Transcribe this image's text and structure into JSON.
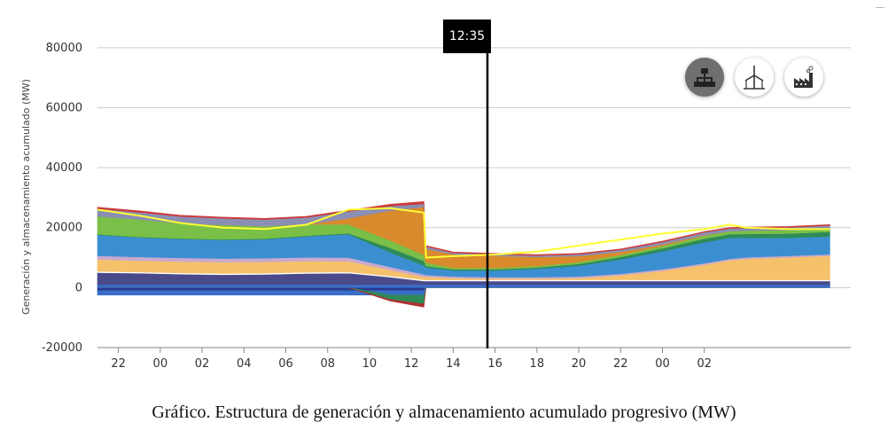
{
  "chart_data": {
    "type": "area",
    "ylabel": "Generación y almacenamiento acumulado (MW)",
    "xlabel": "",
    "ylim": [
      -20000,
      90000
    ],
    "y_ticks": [
      "80000",
      "60000",
      "40000",
      "20000",
      "0",
      "-20000"
    ],
    "x_ticks": [
      "22",
      "00",
      "02",
      "04",
      "06",
      "08",
      "10",
      "12",
      "14",
      "16",
      "18",
      "20",
      "22",
      "00",
      "02"
    ],
    "cursor_time": "12:35",
    "x_hours": [
      0,
      2,
      4,
      6,
      8,
      10,
      12,
      14,
      15.6,
      15.7,
      17,
      19,
      21,
      23,
      25,
      27,
      29,
      30.2,
      31,
      33,
      35
    ],
    "series": [
      {
        "color": "#2a3a8f",
        "values": [
          -1000,
          -1000,
          -1000,
          -1000,
          -1000,
          -1000,
          -1000,
          -1000,
          -1000,
          0,
          0,
          0,
          0,
          0,
          0,
          0,
          0,
          0,
          0,
          0,
          0
        ]
      },
      {
        "color": "#3a6ec8",
        "values": [
          -1500,
          -1500,
          -1500,
          -1500,
          -1500,
          -1500,
          -1500,
          -1500,
          -1500,
          0,
          0,
          0,
          0,
          0,
          0,
          0,
          0,
          0,
          0,
          0,
          0
        ]
      },
      {
        "color": "#2e8b57",
        "values": [
          0,
          0,
          0,
          0,
          0,
          0,
          0,
          -1500,
          -3000,
          0,
          0,
          0,
          0,
          0,
          0,
          0,
          0,
          0,
          0,
          0,
          0
        ]
      },
      {
        "color": "#b03030",
        "values": [
          0,
          0,
          0,
          0,
          0,
          0,
          0,
          -500,
          -1000,
          0,
          0,
          0,
          0,
          0,
          0,
          0,
          0,
          0,
          0,
          0,
          0
        ]
      },
      {
        "color": "#3a6ec8",
        "values": [
          1000,
          1000,
          1000,
          1000,
          1000,
          1000,
          1000,
          1000,
          1000,
          1000,
          1000,
          1000,
          1000,
          1000,
          1000,
          1000,
          1000,
          1000,
          1000,
          1000,
          1000
        ]
      },
      {
        "color": "#4a4a8a",
        "values": [
          4000,
          3800,
          3500,
          3300,
          3400,
          3700,
          3800,
          2500,
          1200,
          1200,
          1200,
          1200,
          1200,
          1200,
          1200,
          1200,
          1200,
          1200,
          1200,
          1200,
          1200
        ]
      },
      {
        "color": "#ffffff",
        "values": [
          400,
          400,
          400,
          400,
          400,
          400,
          400,
          400,
          400,
          400,
          400,
          400,
          400,
          400,
          400,
          400,
          400,
          400,
          400,
          400,
          400
        ]
      },
      {
        "color": "#f5c16b",
        "values": [
          4000,
          3800,
          3800,
          3800,
          3800,
          3800,
          3600,
          2000,
          1000,
          1000,
          600,
          400,
          400,
          600,
          1500,
          3000,
          5000,
          6500,
          7000,
          7500,
          8000
        ]
      },
      {
        "color": "#c9a9cf",
        "values": [
          1200,
          1200,
          1200,
          1200,
          1200,
          1200,
          1200,
          1000,
          800,
          600,
          500,
          500,
          500,
          500,
          500,
          500,
          500,
          500,
          500,
          500,
          500
        ]
      },
      {
        "color": "#3b8fd1",
        "values": [
          7000,
          6500,
          6300,
          6200,
          6300,
          7000,
          7800,
          4800,
          3000,
          2500,
          2000,
          2200,
          2800,
          3600,
          4800,
          6000,
          7000,
          7000,
          6500,
          6000,
          6000
        ]
      },
      {
        "color": "#2e8b57",
        "values": [
          200,
          200,
          200,
          200,
          200,
          200,
          300,
          1500,
          1500,
          500,
          400,
          400,
          400,
          600,
          800,
          1000,
          1200,
          1200,
          1300,
          1400,
          1500
        ]
      },
      {
        "color": "#7abf48",
        "values": [
          6000,
          5800,
          5000,
          4800,
          4200,
          3800,
          3000,
          2500,
          2000,
          1200,
          500,
          500,
          500,
          600,
          700,
          800,
          1000,
          1000,
          1100,
          1200,
          1200
        ]
      },
      {
        "color": "#d98a2c",
        "values": [
          0,
          0,
          0,
          0,
          0,
          0,
          2000,
          10000,
          16000,
          4500,
          4500,
          4000,
          3000,
          2000,
          1000,
          500,
          200,
          0,
          0,
          0,
          0
        ]
      },
      {
        "color": "#8a8fb3",
        "values": [
          2500,
          2400,
          2300,
          2200,
          2200,
          2300,
          2300,
          1500,
          1000,
          800,
          500,
          500,
          500,
          600,
          700,
          800,
          900,
          900,
          900,
          900,
          900
        ]
      },
      {
        "color": "#cc3a3a",
        "values": [
          500,
          500,
          400,
          400,
          400,
          400,
          400,
          600,
          800,
          300,
          300,
          300,
          300,
          300,
          300,
          300,
          300,
          300,
          300,
          300,
          300
        ]
      }
    ],
    "demand_line": {
      "color": "#ffff33",
      "values": [
        26000,
        24000,
        21500,
        20000,
        19500,
        21000,
        26000,
        26500,
        25000,
        10000,
        10500,
        11000,
        12000,
        14000,
        16000,
        18000,
        19500,
        21000,
        20000,
        19500,
        19500
      ]
    },
    "grid": true,
    "legend": "none"
  },
  "toolbar": {
    "buttons": [
      {
        "icon": "hierarchy-icon",
        "active": true
      },
      {
        "icon": "wind-turbine-icon",
        "active": false
      },
      {
        "icon": "factory-icon",
        "active": false
      }
    ]
  },
  "caption": "Gráfico. Estructura de generación y almacenamiento acumulado progresivo (MW)"
}
